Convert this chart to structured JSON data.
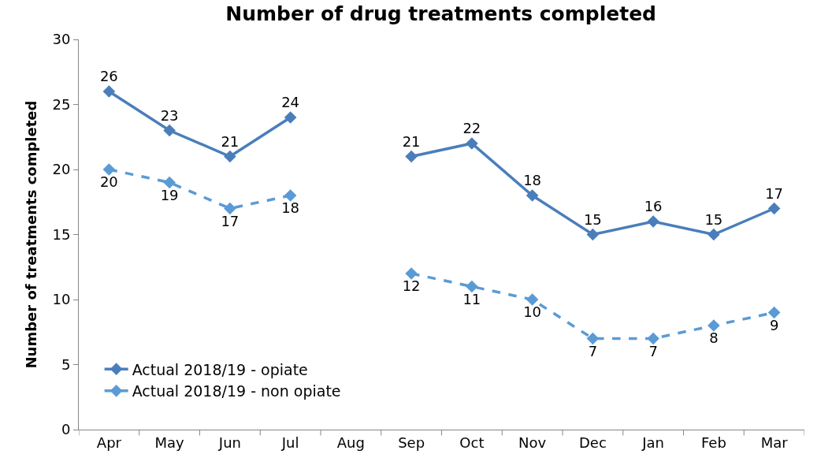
{
  "chart_data": {
    "type": "line",
    "title": "Number of drug treatments completed",
    "ylabel": "Number of treatments completed",
    "categories": [
      "Apr",
      "May",
      "Jun",
      "Jul",
      "Aug",
      "Sep",
      "Oct",
      "Nov",
      "Dec",
      "Jan",
      "Feb",
      "Mar"
    ],
    "series": [
      {
        "name": "Actual 2018/19 - opiate",
        "color": "#4a7ebb",
        "line_style": "solid",
        "values": [
          26,
          23,
          21,
          24,
          null,
          21,
          22,
          18,
          15,
          16,
          15,
          17
        ]
      },
      {
        "name": "Actual 2018/19 - non opiate",
        "color": "#5b9bd5",
        "line_style": "dashed",
        "values": [
          20,
          19,
          17,
          18,
          null,
          12,
          11,
          10,
          7,
          7,
          8,
          9
        ]
      }
    ],
    "ylim": [
      0,
      30
    ],
    "yticks": [
      0,
      5,
      10,
      15,
      20,
      25,
      30
    ],
    "legend": "bottom left",
    "marker": "diamond",
    "data_labels": true
  }
}
